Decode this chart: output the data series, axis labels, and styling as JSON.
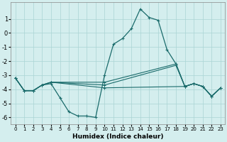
{
  "xlabel": "Humidex (Indice chaleur)",
  "bg_color": "#d4eeee",
  "grid_color": "#aad4d4",
  "line_color": "#1a6b6b",
  "x_ticks": [
    0,
    1,
    2,
    3,
    4,
    5,
    6,
    7,
    8,
    9,
    10,
    11,
    12,
    13,
    14,
    15,
    16,
    17,
    18,
    19,
    20,
    21,
    22,
    23
  ],
  "ylim": [
    -6.5,
    2.2
  ],
  "xlim": [
    -0.5,
    23.5
  ],
  "yticks": [
    1,
    0,
    -1,
    -2,
    -3,
    -4,
    -5,
    -6
  ],
  "series": [
    {
      "x": [
        0,
        1,
        2,
        3,
        4,
        5,
        6,
        7,
        8,
        9,
        10,
        11,
        12,
        13,
        14,
        15,
        16,
        17,
        18,
        19,
        20,
        21,
        22,
        23
      ],
      "y": [
        -3.2,
        -4.1,
        -4.1,
        -3.7,
        -3.6,
        -4.6,
        -5.6,
        -5.9,
        -5.9,
        -6.0,
        -3.0,
        -0.8,
        -0.4,
        0.3,
        1.7,
        1.1,
        0.9,
        -1.2,
        -2.2,
        -3.8,
        -3.6,
        -3.8,
        -4.5,
        -3.9
      ]
    },
    {
      "x": [
        0,
        1,
        2,
        3,
        4,
        10,
        19,
        20,
        21,
        22,
        23
      ],
      "y": [
        -3.2,
        -4.1,
        -4.1,
        -3.7,
        -3.5,
        -3.9,
        -3.8,
        -3.6,
        -3.8,
        -4.5,
        -3.9
      ]
    },
    {
      "x": [
        0,
        1,
        2,
        3,
        4,
        10,
        18,
        19,
        20,
        21,
        22,
        23
      ],
      "y": [
        -3.2,
        -4.1,
        -4.1,
        -3.7,
        -3.5,
        -3.7,
        -2.3,
        -3.8,
        -3.6,
        -3.8,
        -4.5,
        -3.9
      ]
    },
    {
      "x": [
        0,
        1,
        2,
        3,
        4,
        10,
        18,
        19,
        20,
        21,
        22,
        23
      ],
      "y": [
        -3.2,
        -4.1,
        -4.1,
        -3.7,
        -3.5,
        -3.5,
        -2.2,
        -3.8,
        -3.6,
        -3.8,
        -4.5,
        -3.9
      ]
    }
  ]
}
